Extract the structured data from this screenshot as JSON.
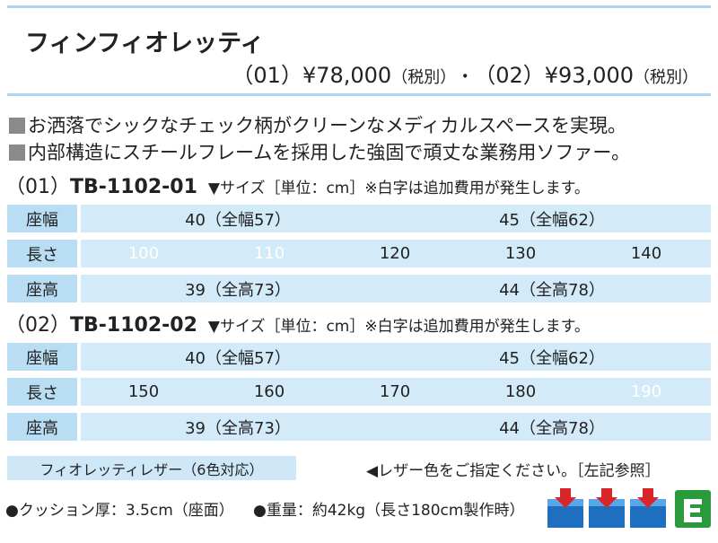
{
  "header": {
    "title": "フィンフィオレッティ",
    "prices": [
      {
        "code": "（01）",
        "price": "¥78,000",
        "tax": "（税別）"
      },
      {
        "code": "（02）",
        "price": "¥93,000",
        "tax": "（税別）"
      }
    ],
    "separator": "・"
  },
  "description": [
    "お洒落でシックなチェック柄がクリーンなメディカルスペースを実現。",
    "内部構造にスチールフレームを採用した強固で頑丈な業務用ソファー。"
  ],
  "sections": [
    {
      "code": "（01）",
      "model": "TB-1102-01",
      "note": "▼サイズ［単位：cm］※白字は追加費用が発生します。",
      "rows": [
        {
          "label": "座幅",
          "cells": [
            {
              "text": "40（全幅57）",
              "color": "#222222"
            },
            {
              "text": "45（全幅62）",
              "color": "#222222"
            }
          ]
        },
        {
          "label": "長さ",
          "cells": [
            {
              "text": "100",
              "color": "#ffffff"
            },
            {
              "text": "110",
              "color": "#ffffff"
            },
            {
              "text": "120",
              "color": "#222222"
            },
            {
              "text": "130",
              "color": "#222222"
            },
            {
              "text": "140",
              "color": "#222222"
            }
          ]
        },
        {
          "label": "座高",
          "cells": [
            {
              "text": "39（全高73）",
              "color": "#222222"
            },
            {
              "text": "44（全高78）",
              "color": "#222222"
            }
          ]
        }
      ]
    },
    {
      "code": "（02）",
      "model": "TB-1102-02",
      "note": "▼サイズ［単位：cm］※白字は追加費用が発生します。",
      "rows": [
        {
          "label": "座幅",
          "cells": [
            {
              "text": "40（全幅57）",
              "color": "#222222"
            },
            {
              "text": "45（全幅62）",
              "color": "#222222"
            }
          ]
        },
        {
          "label": "長さ",
          "cells": [
            {
              "text": "150",
              "color": "#222222"
            },
            {
              "text": "160",
              "color": "#222222"
            },
            {
              "text": "170",
              "color": "#222222"
            },
            {
              "text": "180",
              "color": "#222222"
            },
            {
              "text": "190",
              "color": "#ffffff"
            }
          ]
        },
        {
          "label": "座高",
          "cells": [
            {
              "text": "39（全高73）",
              "color": "#222222"
            },
            {
              "text": "44（全高78）",
              "color": "#222222"
            }
          ]
        }
      ]
    }
  ],
  "leather": {
    "label": "フィオレッティレザー（6色対応）",
    "note": "◀レザー色をご指定ください。［左記参照］"
  },
  "footer": {
    "cushion": "●クッション厚：3.5cm（座面）",
    "weight": "●重量：約42kg（長さ180cm製作時）"
  }
}
